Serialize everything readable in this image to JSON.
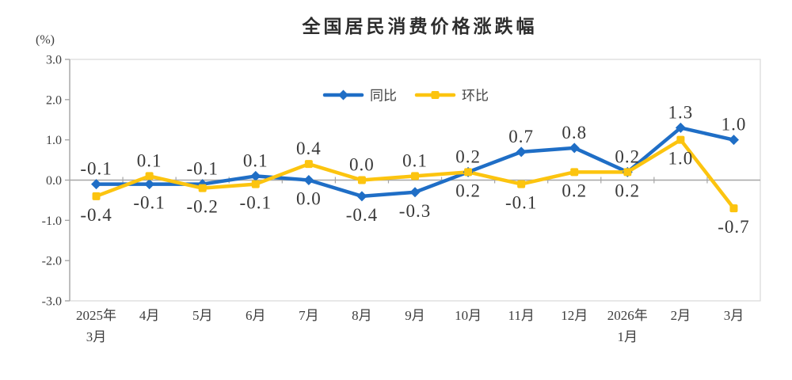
{
  "title": "全国居民消费价格涨跌幅",
  "y_axis_unit": "(%)",
  "colors": {
    "tongbi_blue": "#1f6ec6",
    "huanbi_yellow": "#fcc40f",
    "axis": "#a6a6a6",
    "plot_border": "#d9d9d9",
    "text": "#3d3d3d"
  },
  "legend": {
    "position": "top-center",
    "items": [
      {
        "label": "同比",
        "marker": "diamond",
        "color": "#1f6ec6"
      },
      {
        "label": "环比",
        "marker": "square",
        "color": "#fcc40f"
      }
    ]
  },
  "chart_data": {
    "type": "line",
    "title": "全国居民消费价格涨跌幅",
    "ylabel": "(%)",
    "ylim": [
      -3.0,
      3.0
    ],
    "ytick_step": 1.0,
    "yticks": [
      "3.0",
      "2.0",
      "1.0",
      "0.0",
      "-1.0",
      "-2.0",
      "-3.0"
    ],
    "grid": false,
    "categories": [
      "2025年\n3月",
      "4月",
      "5月",
      "6月",
      "7月",
      "8月",
      "9月",
      "10月",
      "11月",
      "12月",
      "2026年\n1月",
      "2月",
      "3月"
    ],
    "series": [
      {
        "id": "tongbi",
        "name": "同比",
        "color": "#1f6ec6",
        "marker": "diamond",
        "values": [
          -0.1,
          -0.1,
          -0.1,
          0.1,
          0.0,
          -0.4,
          -0.3,
          0.2,
          0.7,
          0.8,
          0.2,
          1.3,
          1.0
        ],
        "label_pos": [
          "above",
          "below",
          "above",
          "above",
          "below",
          "below",
          "below",
          "above",
          "above",
          "above",
          "above",
          "above",
          "above"
        ]
      },
      {
        "id": "huanbi",
        "name": "环比",
        "color": "#fcc40f",
        "marker": "square",
        "values": [
          -0.4,
          0.1,
          -0.2,
          -0.1,
          0.4,
          0.0,
          0.1,
          0.2,
          -0.1,
          0.2,
          0.2,
          1.0,
          -0.7
        ],
        "label_pos": [
          "below",
          "above",
          "below",
          "below",
          "above",
          "above",
          "above",
          "below",
          "below",
          "below",
          "below",
          "below",
          "below"
        ]
      }
    ]
  }
}
